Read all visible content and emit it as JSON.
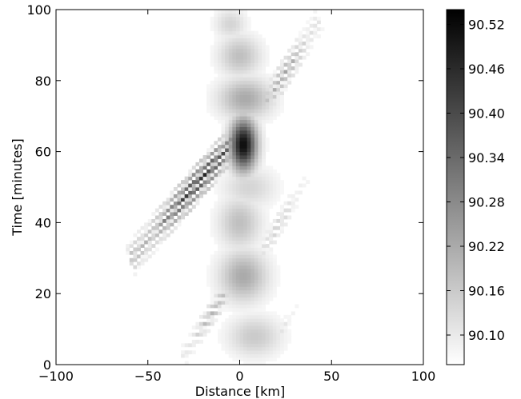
{
  "chart_data": {
    "type": "heatmap",
    "title": "",
    "xlabel": "Distance [km]",
    "ylabel": "Time [minutes]",
    "xlim": [
      -100,
      100
    ],
    "ylim": [
      0,
      100
    ],
    "x_ticks": [
      "−100",
      "−50",
      "0",
      "50",
      "100"
    ],
    "x_tick_values": [
      -100,
      -50,
      0,
      50,
      100
    ],
    "y_ticks": [
      "0",
      "20",
      "40",
      "60",
      "80",
      "100"
    ],
    "y_tick_values": [
      0,
      20,
      40,
      60,
      80,
      100
    ],
    "colormap": "gray_r",
    "colorbar": {
      "min": 90.06,
      "max": 90.54,
      "tick_labels": [
        "90.10",
        "90.16",
        "90.22",
        "90.28",
        "90.34",
        "90.40",
        "90.46",
        "90.52"
      ],
      "tick_values": [
        90.1,
        90.16,
        90.22,
        90.28,
        90.34,
        90.4,
        90.46,
        90.52
      ]
    },
    "grid": false,
    "features": [
      {
        "kind": "stripes",
        "x0": 2,
        "t0": 66,
        "x1": -57,
        "t1": 31,
        "width_km": 12,
        "max_value": 90.48,
        "count": 8
      },
      {
        "kind": "blob",
        "x": 2,
        "t": 62,
        "sx": 5,
        "st": 5,
        "value": 90.52
      },
      {
        "kind": "stripes",
        "x0": 12,
        "t0": 72,
        "x1": 42,
        "t1": 96,
        "width_km": 10,
        "max_value": 90.24,
        "count": 6
      },
      {
        "kind": "blob",
        "x": 3,
        "t": 75,
        "sx": 10,
        "st": 4,
        "value": 90.22
      },
      {
        "kind": "blob",
        "x": 0,
        "t": 87,
        "sx": 8,
        "st": 4,
        "value": 90.18
      },
      {
        "kind": "blob",
        "x": -5,
        "t": 96,
        "sx": 6,
        "st": 3,
        "value": 90.14
      },
      {
        "kind": "stripes",
        "x0": -3,
        "t0": 24,
        "x1": -30,
        "t1": 3,
        "width_km": 8,
        "max_value": 90.22,
        "count": 6
      },
      {
        "kind": "blob",
        "x": 2,
        "t": 25,
        "sx": 9,
        "st": 5,
        "value": 90.22
      },
      {
        "kind": "blob",
        "x": 0,
        "t": 40,
        "sx": 8,
        "st": 5,
        "value": 90.18
      },
      {
        "kind": "blob",
        "x": 5,
        "t": 50,
        "sx": 10,
        "st": 4,
        "value": 90.14
      },
      {
        "kind": "stripes",
        "x0": 10,
        "t0": 30,
        "x1": 36,
        "t1": 52,
        "width_km": 8,
        "max_value": 90.16,
        "count": 5
      },
      {
        "kind": "blob",
        "x": 8,
        "t": 8,
        "sx": 10,
        "st": 4,
        "value": 90.16
      },
      {
        "kind": "stripes",
        "x0": 15,
        "t0": 3,
        "x1": 33,
        "t1": 18,
        "width_km": 6,
        "max_value": 90.12,
        "count": 4
      }
    ]
  }
}
